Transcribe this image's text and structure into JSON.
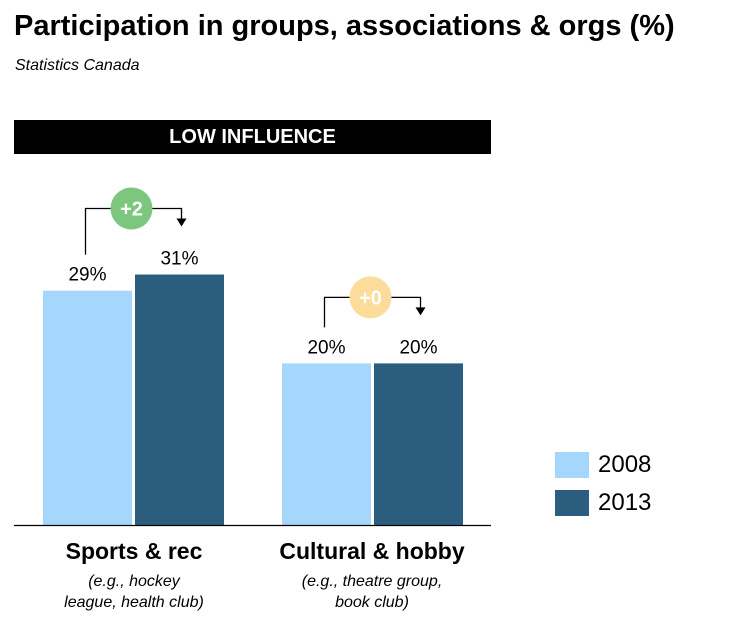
{
  "header": {
    "title": "Participation in groups, associations & orgs (%)",
    "source": "Statistics Canada"
  },
  "banner": {
    "label": "LOW INFLUENCE"
  },
  "colors": {
    "series_2008": "#a5d6fb",
    "series_2013": "#2b5e7e",
    "badge_up": "#7dc67d",
    "badge_flat": "#fcdc9a"
  },
  "categories_detail": [
    {
      "name": "Sports & rec",
      "note_line1": "(e.g., hockey",
      "note_line2": "league, health club)"
    },
    {
      "name": "Cultural & hobby",
      "note_line1": "(e.g., theatre group,",
      "note_line2": "book club)"
    }
  ],
  "chart_data": {
    "type": "bar",
    "title": "Participation in groups, associations & orgs (%)",
    "categories": [
      "Sports & rec",
      "Cultural & hobby"
    ],
    "series": [
      {
        "name": "2008",
        "values": [
          29,
          20
        ],
        "labels": [
          "29%",
          "20%"
        ]
      },
      {
        "name": "2013",
        "values": [
          31,
          20
        ],
        "labels": [
          "31%",
          "20%"
        ]
      }
    ],
    "changes": [
      "+2",
      "+0"
    ],
    "ylim": [
      0,
      40
    ],
    "grid": false,
    "legend": "right"
  }
}
